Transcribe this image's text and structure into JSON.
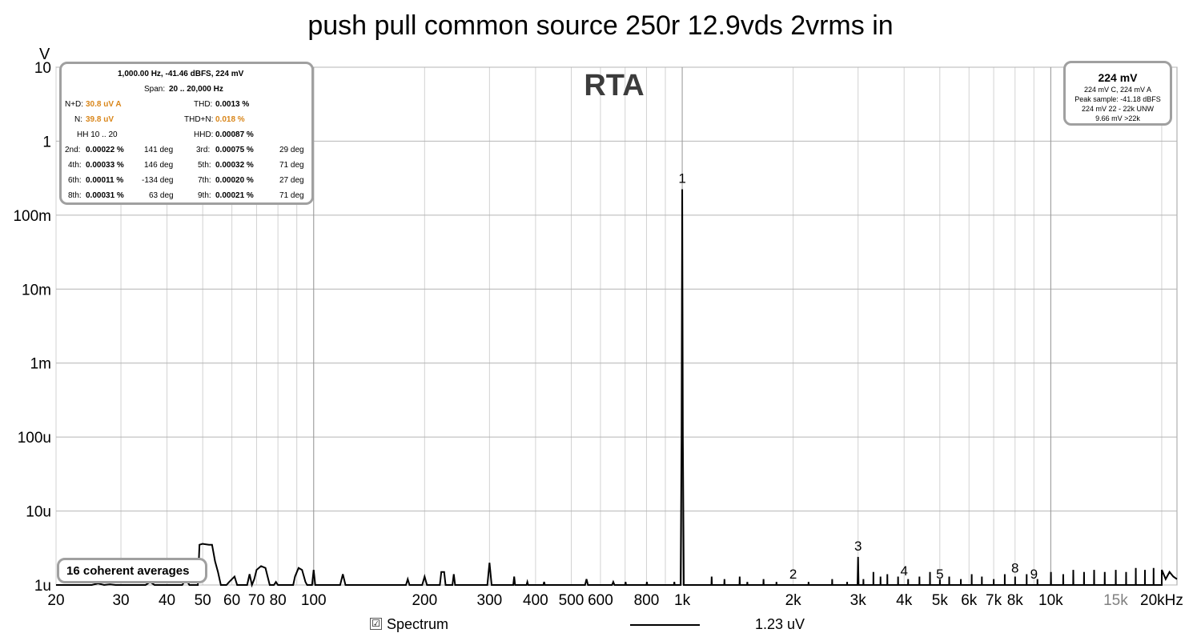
{
  "chart_data": {
    "type": "line",
    "title": "push pull common source 250r 12.9vds 2vrms in",
    "watermark": "RTA",
    "y_unit": "V",
    "x_unit": "kHz",
    "x_scale": "log",
    "y_scale": "log",
    "xlim": [
      20,
      22000
    ],
    "ylim": [
      1e-06,
      10
    ],
    "grid": true,
    "line_color": "#000000",
    "grid_color": "#c8c8c8",
    "x_ticks": [
      {
        "value": 20,
        "label": "20"
      },
      {
        "value": 30,
        "label": "30"
      },
      {
        "value": 40,
        "label": "40"
      },
      {
        "value": 50,
        "label": "50"
      },
      {
        "value": 60,
        "label": "60"
      },
      {
        "value": 70,
        "label": "70"
      },
      {
        "value": 80,
        "label": "80"
      },
      {
        "value": 100,
        "label": "100"
      },
      {
        "value": 200,
        "label": "200"
      },
      {
        "value": 300,
        "label": "300"
      },
      {
        "value": 400,
        "label": "400"
      },
      {
        "value": 500,
        "label": "500"
      },
      {
        "value": 600,
        "label": "600"
      },
      {
        "value": 800,
        "label": "800"
      },
      {
        "value": 1000,
        "label": "1k"
      },
      {
        "value": 2000,
        "label": "2k"
      },
      {
        "value": 3000,
        "label": "3k"
      },
      {
        "value": 4000,
        "label": "4k"
      },
      {
        "value": 5000,
        "label": "5k"
      },
      {
        "value": 6000,
        "label": "6k"
      },
      {
        "value": 7000,
        "label": "7k"
      },
      {
        "value": 8000,
        "label": "8k"
      },
      {
        "value": 10000,
        "label": "10k"
      },
      {
        "value": 15000,
        "label": "15k",
        "grey": true
      },
      {
        "value": 20000,
        "label": "20kHz"
      }
    ],
    "y_ticks": [
      {
        "value": 10,
        "label": "10"
      },
      {
        "value": 1,
        "label": "1"
      },
      {
        "value": 0.1,
        "label": "100m"
      },
      {
        "value": 0.01,
        "label": "10m"
      },
      {
        "value": 0.001,
        "label": "1m"
      },
      {
        "value": 0.0001,
        "label": "100u"
      },
      {
        "value": 1e-05,
        "label": "10u"
      },
      {
        "value": 1e-06,
        "label": "1u"
      }
    ],
    "harmonic_markers": [
      {
        "label": "1",
        "x": 1000,
        "y": 0.224
      },
      {
        "label": "2",
        "x": 2000,
        "y": 9e-07
      },
      {
        "label": "3",
        "x": 3000,
        "y": 2.4e-06
      },
      {
        "label": "4",
        "x": 4000,
        "y": 1.1e-06
      },
      {
        "label": "5",
        "x": 5000,
        "y": 8e-07
      },
      {
        "label": "8",
        "x": 8000,
        "y": 1.2e-06
      },
      {
        "label": "9",
        "x": 9000,
        "y": 9e-07
      }
    ],
    "series": [
      {
        "name": "Spectrum",
        "legend_value": "1.23 uV",
        "points": [
          [
            20,
            8.5e-07
          ],
          [
            25,
            9e-07
          ],
          [
            26,
            1.05e-06
          ],
          [
            27,
            9e-07
          ],
          [
            28,
            1.02e-06
          ],
          [
            29,
            9e-07
          ],
          [
            35,
            9e-07
          ],
          [
            36,
            1.1e-06
          ],
          [
            37,
            9e-07
          ],
          [
            44,
            9e-07
          ],
          [
            45,
            1.2e-06
          ],
          [
            46,
            9e-07
          ],
          [
            48.5,
            9e-07
          ],
          [
            49,
            3.5e-06
          ],
          [
            50,
            3.6e-06
          ],
          [
            52,
            3.5e-06
          ],
          [
            53,
            3.5e-06
          ],
          [
            54,
            2.1e-06
          ],
          [
            55,
            1.5e-06
          ],
          [
            56,
            9e-07
          ],
          [
            58,
            9e-07
          ],
          [
            59,
            1.1e-06
          ],
          [
            61,
            1.3e-06
          ],
          [
            62,
            9e-07
          ],
          [
            66,
            9e-07
          ],
          [
            67,
            1.4e-06
          ],
          [
            68,
            9e-07
          ],
          [
            69,
            1.2e-06
          ],
          [
            70,
            1.6e-06
          ],
          [
            72,
            1.8e-06
          ],
          [
            74,
            1.7e-06
          ],
          [
            75,
            1.3e-06
          ],
          [
            76,
            9e-07
          ],
          [
            78,
            9e-07
          ],
          [
            79,
            1.1e-06
          ],
          [
            80,
            9e-07
          ],
          [
            88,
            9e-07
          ],
          [
            89,
            1.3e-06
          ],
          [
            91,
            1.7e-06
          ],
          [
            93,
            1.6e-06
          ],
          [
            95,
            1.1e-06
          ],
          [
            96,
            9e-07
          ],
          [
            99,
            9e-07
          ],
          [
            100,
            1.6e-06
          ],
          [
            101,
            9e-07
          ],
          [
            118,
            9e-07
          ],
          [
            120,
            1.4e-06
          ],
          [
            122,
            9e-07
          ],
          [
            178,
            9e-07
          ],
          [
            180,
            1.2e-06
          ],
          [
            182,
            9e-07
          ],
          [
            197,
            9e-07
          ],
          [
            200,
            1.3e-06
          ],
          [
            203,
            9e-07
          ],
          [
            220,
            9e-07
          ],
          [
            222,
            1.5e-06
          ],
          [
            226,
            1.5e-06
          ],
          [
            228,
            9e-07
          ],
          [
            238,
            9e-07
          ],
          [
            240,
            1.4e-06
          ],
          [
            242,
            9e-07
          ],
          [
            296,
            9e-07
          ],
          [
            300,
            2e-06
          ],
          [
            304,
            9e-07
          ],
          [
            348,
            9e-07
          ],
          [
            350,
            1.3e-06
          ],
          [
            352,
            9e-07
          ],
          [
            378,
            9e-07
          ],
          [
            380,
            1.1e-06
          ],
          [
            382,
            9e-07
          ],
          [
            420,
            9e-07
          ],
          [
            422,
            1.1e-06
          ],
          [
            424,
            9e-07
          ],
          [
            545,
            9e-07
          ],
          [
            550,
            1.2e-06
          ],
          [
            555,
            9e-07
          ],
          [
            645,
            9e-07
          ],
          [
            650,
            1.1e-06
          ],
          [
            655,
            9e-07
          ],
          [
            700,
            9e-07
          ],
          [
            702,
            1.1e-06
          ],
          [
            704,
            9e-07
          ],
          [
            800,
            9e-07
          ],
          [
            802,
            1.1e-06
          ],
          [
            804,
            9e-07
          ],
          [
            870,
            9e-07
          ],
          [
            872,
            1e-06
          ],
          [
            874,
            9e-07
          ],
          [
            950,
            9e-07
          ],
          [
            952,
            1.1e-06
          ],
          [
            954,
            9e-07
          ],
          [
            990,
            9e-07
          ],
          [
            996,
            0.0001
          ],
          [
            1000,
            0.224
          ],
          [
            1004,
            0.0001
          ],
          [
            1010,
            9e-07
          ],
          [
            1080,
            9e-07
          ],
          [
            1082,
            1e-06
          ],
          [
            1084,
            9e-07
          ],
          [
            1200,
            9e-07
          ],
          [
            1202,
            1.3e-06
          ],
          [
            1204,
            9e-07
          ],
          [
            1300,
            9e-07
          ],
          [
            1302,
            1.2e-06
          ],
          [
            1304,
            9e-07
          ],
          [
            1430,
            9e-07
          ],
          [
            1432,
            1.3e-06
          ],
          [
            1434,
            9e-07
          ],
          [
            1500,
            9e-07
          ],
          [
            1502,
            1.1e-06
          ],
          [
            1504,
            9e-07
          ],
          [
            1660,
            9e-07
          ],
          [
            1662,
            1.2e-06
          ],
          [
            1664,
            9e-07
          ],
          [
            1800,
            9e-07
          ],
          [
            1802,
            1.1e-06
          ],
          [
            1804,
            9e-07
          ],
          [
            2200,
            9e-07
          ],
          [
            2202,
            1.1e-06
          ],
          [
            2204,
            9e-07
          ],
          [
            2550,
            9e-07
          ],
          [
            2552,
            1.2e-06
          ],
          [
            2554,
            9e-07
          ],
          [
            2800,
            9e-07
          ],
          [
            2802,
            1.1e-06
          ],
          [
            2804,
            9e-07
          ],
          [
            2990,
            9e-07
          ],
          [
            3000,
            2.4e-06
          ],
          [
            3010,
            9e-07
          ],
          [
            3100,
            9e-07
          ],
          [
            3102,
            1.2e-06
          ],
          [
            3104,
            9e-07
          ],
          [
            3300,
            9e-07
          ],
          [
            3302,
            1.5e-06
          ],
          [
            3304,
            9e-07
          ],
          [
            3450,
            9e-07
          ],
          [
            3452,
            1.3e-06
          ],
          [
            3454,
            9e-07
          ],
          [
            3600,
            9e-07
          ],
          [
            3602,
            1.4e-06
          ],
          [
            3604,
            9e-07
          ],
          [
            3850,
            9e-07
          ],
          [
            3852,
            1.3e-06
          ],
          [
            3854,
            9e-07
          ],
          [
            4100,
            9e-07
          ],
          [
            4102,
            1.2e-06
          ],
          [
            4104,
            9e-07
          ],
          [
            4400,
            9e-07
          ],
          [
            4402,
            1.3e-06
          ],
          [
            4404,
            9e-07
          ],
          [
            4700,
            9e-07
          ],
          [
            4702,
            1.5e-06
          ],
          [
            4704,
            9e-07
          ],
          [
            5000,
            9e-07
          ],
          [
            5002,
            1.2e-06
          ],
          [
            5004,
            9e-07
          ],
          [
            5300,
            9e-07
          ],
          [
            5302,
            1.3e-06
          ],
          [
            5304,
            9e-07
          ],
          [
            5700,
            9e-07
          ],
          [
            5702,
            1.2e-06
          ],
          [
            5704,
            9e-07
          ],
          [
            6100,
            9e-07
          ],
          [
            6102,
            1.4e-06
          ],
          [
            6104,
            9e-07
          ],
          [
            6500,
            9e-07
          ],
          [
            6502,
            1.3e-06
          ],
          [
            6504,
            9e-07
          ],
          [
            7000,
            9e-07
          ],
          [
            7002,
            1.2e-06
          ],
          [
            7004,
            9e-07
          ],
          [
            7500,
            9e-07
          ],
          [
            7502,
            1.4e-06
          ],
          [
            7504,
            9e-07
          ],
          [
            8000,
            9e-07
          ],
          [
            8002,
            1.3e-06
          ],
          [
            8004,
            9e-07
          ],
          [
            8600,
            9e-07
          ],
          [
            8602,
            1.4e-06
          ],
          [
            8604,
            9e-07
          ],
          [
            9200,
            9e-07
          ],
          [
            9202,
            1.2e-06
          ],
          [
            9204,
            9e-07
          ],
          [
            10000,
            9e-07
          ],
          [
            10010,
            1.5e-06
          ],
          [
            10020,
            9e-07
          ],
          [
            10800,
            9e-07
          ],
          [
            10810,
            1.4e-06
          ],
          [
            10820,
            9e-07
          ],
          [
            11500,
            9e-07
          ],
          [
            11510,
            1.6e-06
          ],
          [
            11520,
            9e-07
          ],
          [
            12300,
            9e-07
          ],
          [
            12310,
            1.5e-06
          ],
          [
            12320,
            9e-07
          ],
          [
            13100,
            9e-07
          ],
          [
            13110,
            1.6e-06
          ],
          [
            13120,
            9e-07
          ],
          [
            14000,
            9e-07
          ],
          [
            14010,
            1.5e-06
          ],
          [
            14020,
            9e-07
          ],
          [
            15000,
            9e-07
          ],
          [
            15010,
            1.6e-06
          ],
          [
            15020,
            9e-07
          ],
          [
            16000,
            9e-07
          ],
          [
            16010,
            1.5e-06
          ],
          [
            16020,
            9e-07
          ],
          [
            17000,
            9e-07
          ],
          [
            17010,
            1.7e-06
          ],
          [
            17020,
            9e-07
          ],
          [
            18000,
            9e-07
          ],
          [
            18010,
            1.6e-06
          ],
          [
            18020,
            9e-07
          ],
          [
            19000,
            9e-07
          ],
          [
            19010,
            1.7e-06
          ],
          [
            19020,
            9e-07
          ],
          [
            20000,
            9e-07
          ],
          [
            20010,
            1.6e-06
          ],
          [
            20500,
            1.2e-06
          ],
          [
            21000,
            1.5e-06
          ],
          [
            21500,
            1.3e-06
          ],
          [
            22000,
            1.2e-06
          ]
        ]
      }
    ]
  },
  "stats_box": {
    "header": "1,000.00 Hz, -41.46 dBFS, 224 mV",
    "span_label": "Span:",
    "span_value": "20 .. 20,000 Hz",
    "nd_label": "N+D:",
    "nd_value": "30.8 uV A",
    "thd_label": "THD:",
    "thd_value": "0.0013 %",
    "n_label": "N:",
    "n_value": "39.8 uV",
    "thdn_label": "THD+N:",
    "thdn_value": "0.018 %",
    "hh_label": "HH 10 .. 20",
    "hhd_label": "HHD:",
    "hhd_value": "0.00087 %",
    "harmonics": [
      {
        "a_label": "2nd:",
        "a_value": "0.00022 %",
        "a_deg": "141 deg",
        "b_label": "3rd:",
        "b_value": "0.00075 %",
        "b_deg": "29 deg"
      },
      {
        "a_label": "4th:",
        "a_value": "0.00033 %",
        "a_deg": "146 deg",
        "b_label": "5th:",
        "b_value": "0.00032 %",
        "b_deg": "71 deg"
      },
      {
        "a_label": "6th:",
        "a_value": "0.00011 %",
        "a_deg": "-134 deg",
        "b_label": "7th:",
        "b_value": "0.00020 %",
        "b_deg": "27 deg"
      },
      {
        "a_label": "8th:",
        "a_value": "0.00031 %",
        "a_deg": "63 deg",
        "b_label": "9th:",
        "b_value": "0.00021 %",
        "b_deg": "71 deg"
      }
    ]
  },
  "level_box": {
    "main": "224 mV",
    "lines": [
      "224 mV C, 224 mV A",
      "Peak sample: -41.18 dBFS",
      "224 mV 22 - 22k UNW",
      "9.66 mV >22k"
    ]
  },
  "averages_label": "16 coherent averages",
  "legend": {
    "checkbox_mark": "☑",
    "name": "Spectrum",
    "value": "1.23 uV"
  }
}
